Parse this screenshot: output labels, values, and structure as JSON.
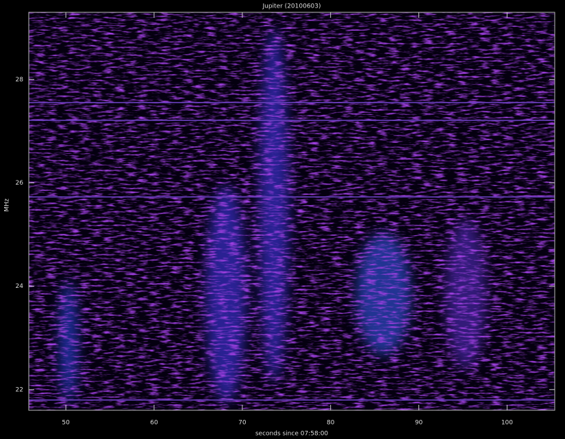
{
  "chart_data": {
    "type": "heatmap",
    "title": "Jupiter (20100603)",
    "x_label": "seconds since 07:58:00",
    "y_label": "MHz",
    "xlim": [
      45.8,
      105.4
    ],
    "xticks": [
      50,
      60,
      70,
      80,
      90,
      100
    ],
    "ylim": [
      21.6,
      29.3
    ],
    "yticks": [
      22,
      24,
      26,
      28
    ]
  }
}
